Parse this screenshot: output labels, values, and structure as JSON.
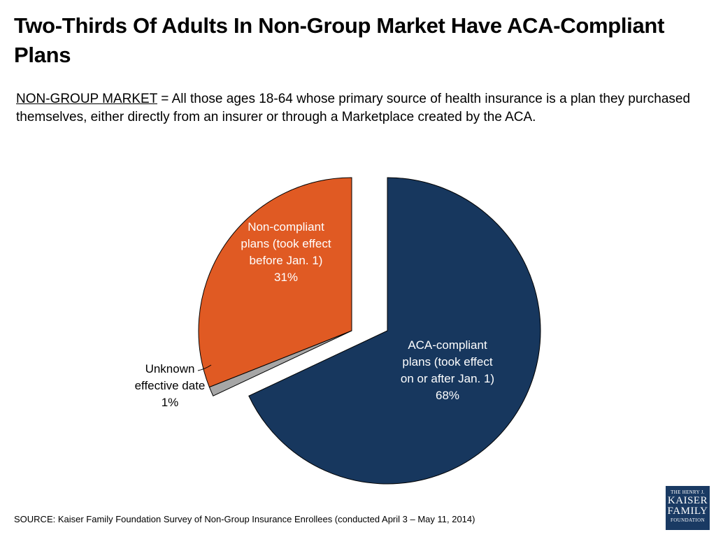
{
  "title": "Two-Thirds Of Adults In Non-Group Market Have ACA-Compliant Plans",
  "definition": {
    "term": "NON-GROUP MARKET",
    "text": " = All those ages 18-64 whose primary source of health insurance is a plan they purchased themselves, either directly from an insurer or through a Marketplace created by the ACA."
  },
  "chart_data": {
    "type": "pie",
    "title": "",
    "slices": [
      {
        "label": "ACA-compliant plans (took effect on or after Jan. 1)",
        "value": 68,
        "value_label": "68%",
        "color": "#17375e",
        "exploded": true
      },
      {
        "label": "Unknown effective date",
        "value": 1,
        "value_label": "1%",
        "color": "#a6a6a6",
        "exploded": false
      },
      {
        "label": "Non-compliant plans (took effect before Jan. 1)",
        "value": 31,
        "value_label": "31%",
        "color": "#e05a23",
        "exploded": false
      }
    ]
  },
  "source": "SOURCE: Kaiser Family Foundation Survey of Non-Group Insurance Enrollees  (conducted April 3 – May 11, 2014)",
  "logo": {
    "line1": "THE HENRY J.",
    "line2": "KAISER",
    "line3": "FAMILY",
    "line4": "FOUNDATION"
  }
}
